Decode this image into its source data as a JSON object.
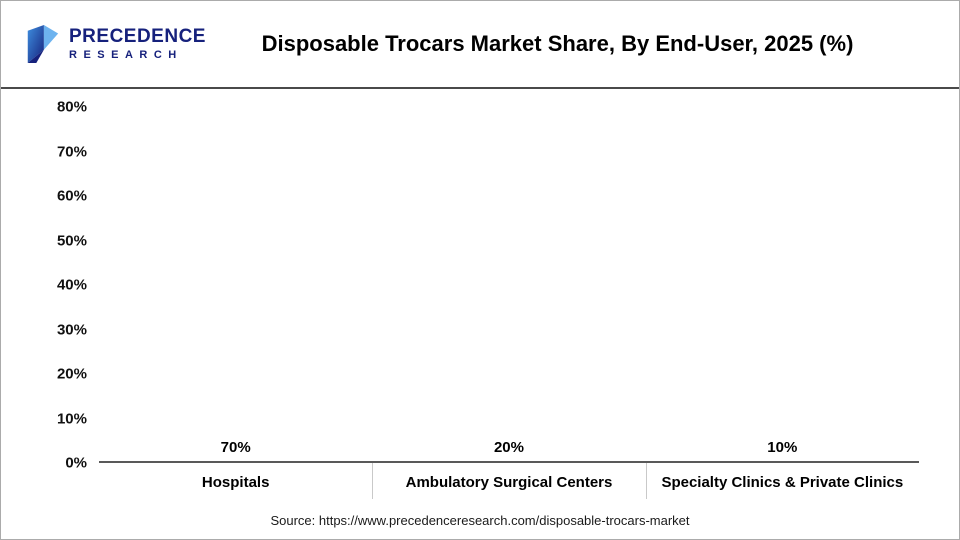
{
  "header": {
    "logo_line1": "PRECEDENCE",
    "logo_line2": "RESEARCH",
    "title": "Disposable Trocars Market Share, By End-User, 2025 (%)"
  },
  "chart_data": {
    "type": "bar",
    "title": "Disposable Trocars Market Share, By End-User, 2025 (%)",
    "categories": [
      "Hospitals",
      "Ambulatory Surgical Centers",
      "Specialty Clinics & Private Clinics"
    ],
    "values": [
      70,
      20,
      10
    ],
    "value_labels": [
      "70%",
      "20%",
      "10%"
    ],
    "colors": [
      "#08084a",
      "#4d96ea",
      "#4f5a8f"
    ],
    "ylim": [
      0,
      80
    ],
    "yticks": [
      "80%",
      "70%",
      "60%",
      "50%",
      "40%",
      "30%",
      "20%",
      "10%",
      "0%"
    ],
    "xlabel": "",
    "ylabel": "",
    "grid": "off",
    "legend": "none"
  },
  "footer": {
    "source": "Source: https://www.precedenceresearch.com/disposable-trocars-market"
  }
}
